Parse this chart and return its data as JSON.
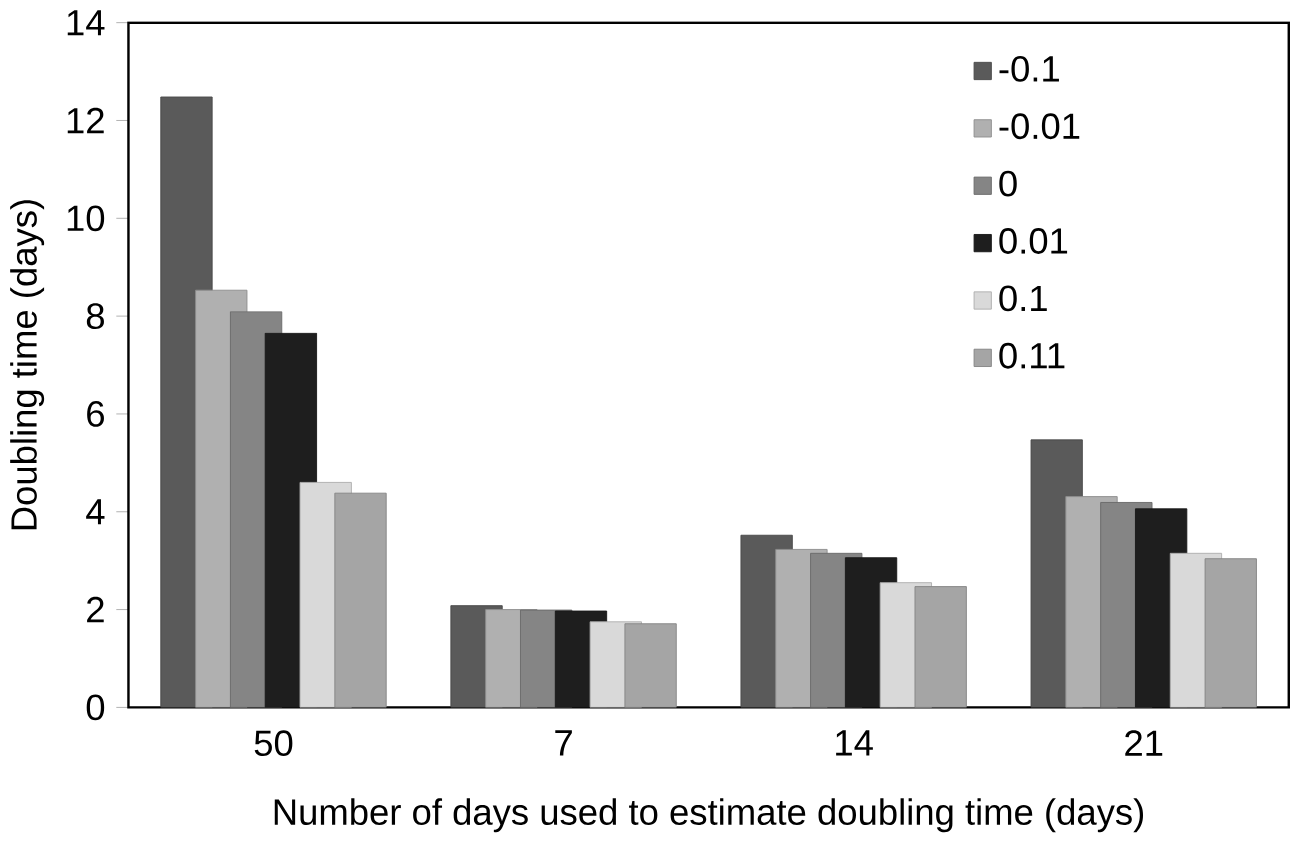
{
  "chart_data": {
    "type": "bar",
    "xlabel": "Number of days used to estimate doubling time (days)",
    "ylabel": "Doubling time (days)",
    "categories": [
      "50",
      "7",
      "14",
      "21"
    ],
    "series": [
      {
        "name": "-0.1",
        "color": "#5a5a5a",
        "values": [
          12.48,
          2.08,
          3.52,
          5.47
        ]
      },
      {
        "name": "-0.01",
        "color": "#b0b0b0",
        "values": [
          8.53,
          2.0,
          3.23,
          4.31
        ]
      },
      {
        "name": "0",
        "color": "#858585",
        "values": [
          8.09,
          1.99,
          3.15,
          4.19
        ]
      },
      {
        "name": "0.01",
        "color": "#1e1e1e",
        "values": [
          7.65,
          1.97,
          3.06,
          4.06
        ]
      },
      {
        "name": "0.1",
        "color": "#d9d9d9",
        "values": [
          4.6,
          1.75,
          2.55,
          3.15
        ]
      },
      {
        "name": "0.11",
        "color": "#a5a5a5",
        "values": [
          4.38,
          1.71,
          2.47,
          3.04
        ]
      }
    ],
    "ylim": [
      0,
      14
    ],
    "yticks": [
      0,
      2,
      4,
      6,
      8,
      10,
      12,
      14
    ],
    "legend": "top right",
    "grid": false
  }
}
